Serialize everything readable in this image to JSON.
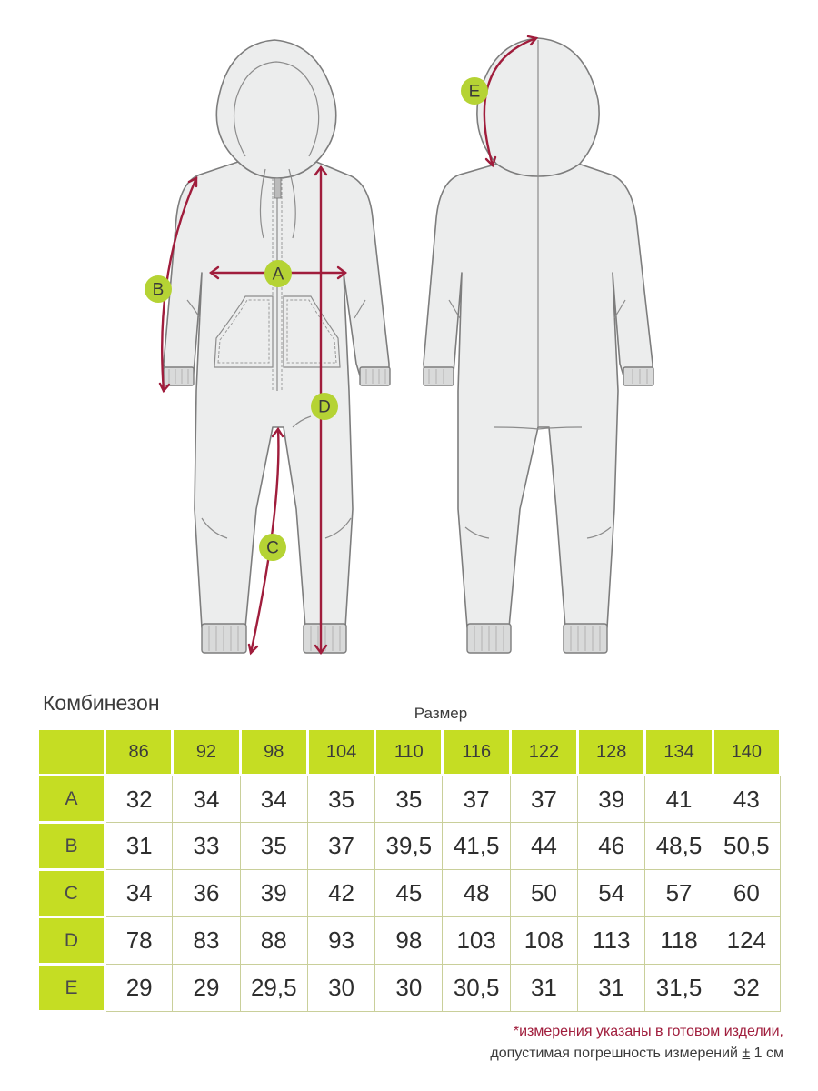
{
  "markers": {
    "a": "A",
    "b": "B",
    "c": "C",
    "d": "D",
    "e": "E"
  },
  "colors": {
    "accent_green": "#c5dd23",
    "measure_line": "#a01d3c",
    "garment_fill": "#eceded"
  },
  "title": "Комбинезон",
  "size_caption": "Размер",
  "table": {
    "sizes": [
      "86",
      "92",
      "98",
      "104",
      "110",
      "116",
      "122",
      "128",
      "134",
      "140"
    ],
    "rows": [
      {
        "label": "A",
        "values": [
          "32",
          "34",
          "34",
          "35",
          "35",
          "37",
          "37",
          "39",
          "41",
          "43"
        ]
      },
      {
        "label": "B",
        "values": [
          "31",
          "33",
          "35",
          "37",
          "39,5",
          "41,5",
          "44",
          "46",
          "48,5",
          "50,5"
        ]
      },
      {
        "label": "C",
        "values": [
          "34",
          "36",
          "39",
          "42",
          "45",
          "48",
          "50",
          "54",
          "57",
          "60"
        ]
      },
      {
        "label": "D",
        "values": [
          "78",
          "83",
          "88",
          "93",
          "98",
          "103",
          "108",
          "113",
          "118",
          "124"
        ]
      },
      {
        "label": "E",
        "values": [
          "29",
          "29",
          "29,5",
          "30",
          "30",
          "30,5",
          "31",
          "31",
          "31,5",
          "32"
        ]
      }
    ]
  },
  "note": {
    "line1": "*измерения указаны в готовом изделии,",
    "line2_prefix": "допустимая погрешность измерений ",
    "plus_minus": "±",
    "line2_suffix": " 1 см"
  }
}
